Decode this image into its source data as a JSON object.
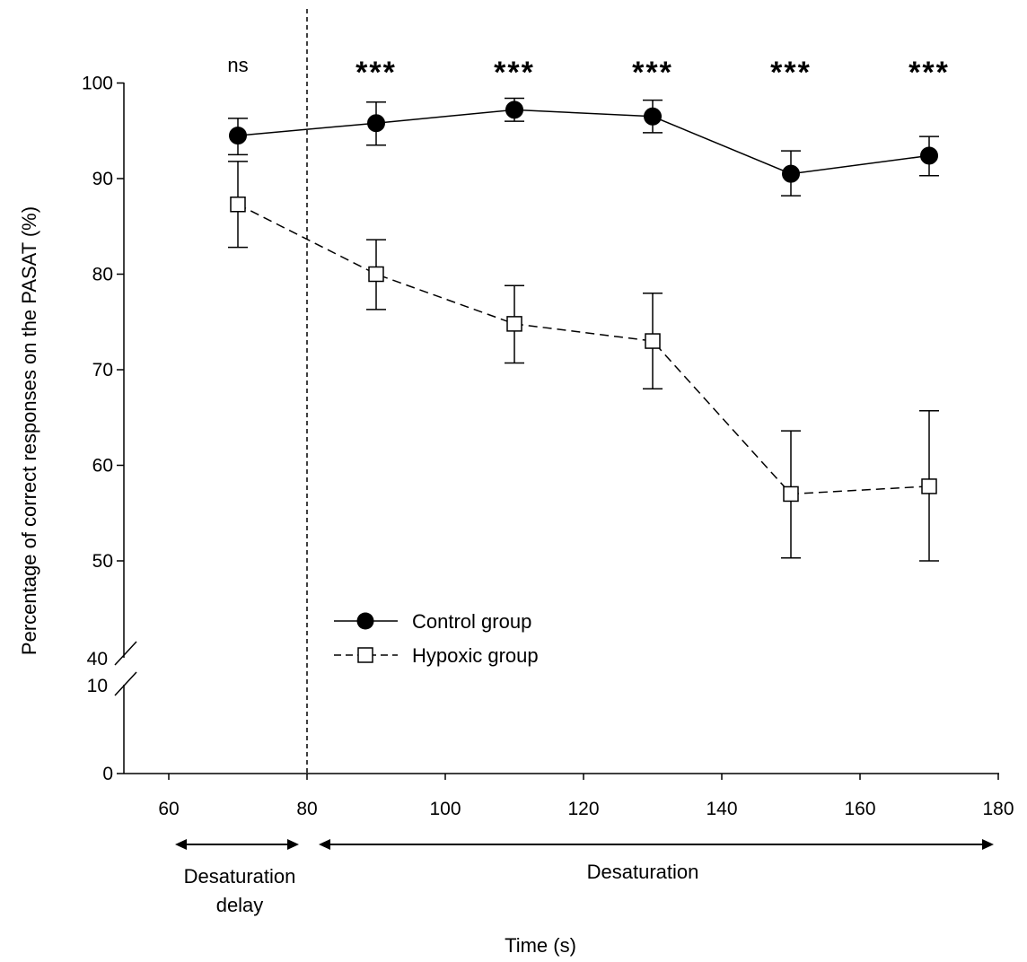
{
  "chart_data": {
    "type": "line",
    "xlabel": "Time (s)",
    "ylabel": "Percentage of correct responses on the PASAT (%)",
    "xlim": [
      55,
      180
    ],
    "x_ticks": [
      60,
      80,
      100,
      120,
      140,
      160,
      180
    ],
    "y_ticks_upper": [
      50,
      60,
      70,
      80,
      90,
      100
    ],
    "y_ticks_lower": [
      0,
      10
    ],
    "y_break_labels": [
      "40",
      "10"
    ],
    "y_break": {
      "lower_range": [
        0,
        10
      ],
      "upper_range": [
        40,
        100
      ]
    },
    "x": [
      70,
      90,
      110,
      130,
      150,
      170
    ],
    "series": [
      {
        "name": "Control group",
        "marker": "filled-circle",
        "line": "solid",
        "values": [
          94.5,
          95.8,
          97.2,
          96.5,
          90.5,
          92.4
        ],
        "error_low": [
          92.5,
          93.5,
          96.0,
          94.8,
          88.2,
          90.3
        ],
        "error_high": [
          96.3,
          98.0,
          98.4,
          98.2,
          92.9,
          94.4
        ]
      },
      {
        "name": "Hypoxic group",
        "marker": "open-square",
        "line": "dashed",
        "values": [
          87.3,
          80.0,
          74.8,
          73.0,
          57.0,
          57.8
        ],
        "error_low": [
          82.8,
          76.3,
          70.7,
          68.0,
          50.3,
          50.0
        ],
        "error_high": [
          91.8,
          83.6,
          78.8,
          78.0,
          63.6,
          65.7
        ]
      }
    ],
    "significance": [
      "ns",
      "***",
      "***",
      "***",
      "***",
      "***"
    ],
    "vertical_marker_x": 80,
    "phases": [
      {
        "label_lines": [
          "Desaturation",
          "delay"
        ],
        "from": 60,
        "to": 80
      },
      {
        "label_lines": [
          "Desaturation"
        ],
        "from": 80,
        "to": 180
      }
    ],
    "legend_position": "lower-left",
    "grid": false
  }
}
